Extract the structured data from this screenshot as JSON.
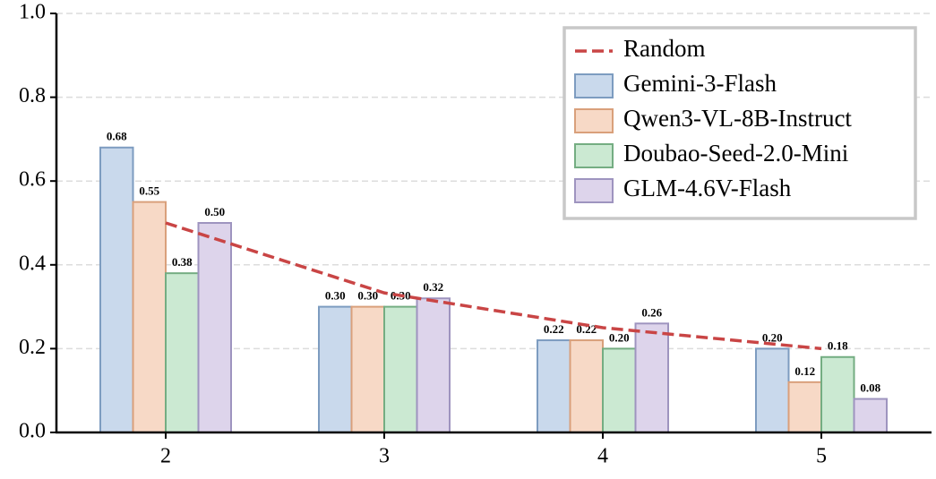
{
  "chart_data": {
    "type": "bar",
    "categories": [
      "2",
      "3",
      "4",
      "5"
    ],
    "series": [
      {
        "name": "Random",
        "type": "line",
        "linestyle": "dashed",
        "color": "#c94545",
        "values": [
          0.5,
          0.333,
          0.25,
          0.2
        ]
      },
      {
        "name": "Gemini-3-Flash",
        "color": "#c9d9ec",
        "edgecolor": "#7d9cc0",
        "values": [
          0.68,
          0.3,
          0.22,
          0.2
        ],
        "value_labels": [
          "0.68",
          "0.30",
          "0.22",
          "0.20"
        ]
      },
      {
        "name": "Qwen3-VL-8B-Instruct",
        "color": "#f7d9c6",
        "edgecolor": "#d9a07b",
        "values": [
          0.55,
          0.3,
          0.22,
          0.12
        ],
        "value_labels": [
          "0.55",
          "0.30",
          "0.22",
          "0.12"
        ]
      },
      {
        "name": "Doubao-Seed-2.0-Mini",
        "color": "#cbe9d2",
        "edgecolor": "#74ad82",
        "values": [
          0.38,
          0.3,
          0.2,
          0.18
        ],
        "value_labels": [
          "0.38",
          "0.30",
          "0.20",
          "0.18"
        ]
      },
      {
        "name": "GLM-4.6V-Flash",
        "color": "#ddd4eb",
        "edgecolor": "#9e94bf",
        "values": [
          0.5,
          0.32,
          0.26,
          0.08
        ],
        "value_labels": [
          "0.50",
          "0.32",
          "0.26",
          "0.08"
        ]
      }
    ],
    "ylim": [
      0,
      1
    ],
    "yticks": [
      {
        "value": 0,
        "label": "0.0"
      },
      {
        "value": 0.2,
        "label": "0.2"
      },
      {
        "value": 0.4,
        "label": "0.4"
      },
      {
        "value": 0.6,
        "label": "0.6"
      },
      {
        "value": 0.8,
        "label": "0.8"
      },
      {
        "value": 1,
        "label": "1.0"
      }
    ],
    "grid": true,
    "legend": "upper right"
  }
}
